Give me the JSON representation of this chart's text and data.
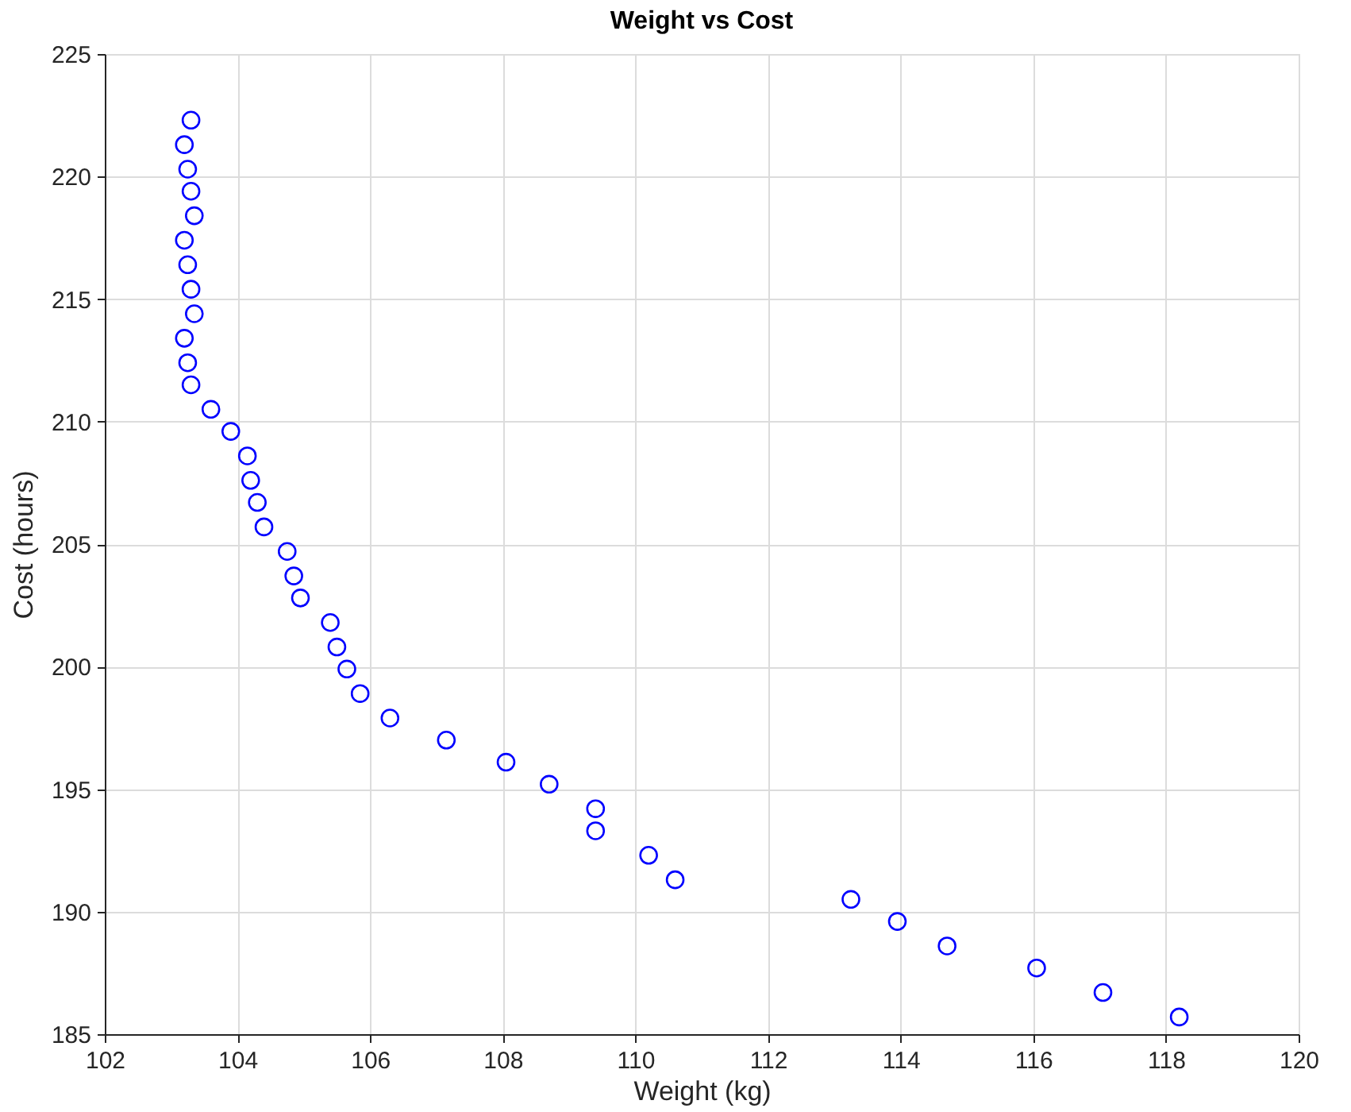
{
  "chart_data": {
    "type": "scatter",
    "title": "Weight vs Cost",
    "xlabel": "Weight (kg)",
    "ylabel": "Cost (hours)",
    "x": [
      103.3,
      103.2,
      103.25,
      103.3,
      103.35,
      103.2,
      103.25,
      103.3,
      103.35,
      103.2,
      103.25,
      103.3,
      103.6,
      103.9,
      104.15,
      104.2,
      104.3,
      104.4,
      104.75,
      104.85,
      104.95,
      105.4,
      105.5,
      105.65,
      105.85,
      106.3,
      107.15,
      108.05,
      108.7,
      109.4,
      109.4,
      110.2,
      110.6,
      113.25,
      113.95,
      114.7,
      116.05,
      117.05,
      118.2
    ],
    "series": [
      {
        "color": "#0000ff",
        "values": [
          222.3,
          221.3,
          220.3,
          219.4,
          218.4,
          217.4,
          216.4,
          215.4,
          214.4,
          213.4,
          212.4,
          211.5,
          210.5,
          209.6,
          208.6,
          207.6,
          206.7,
          205.7,
          204.7,
          203.7,
          202.8,
          201.8,
          200.8,
          199.9,
          198.9,
          197.9,
          197.0,
          196.1,
          195.2,
          194.2,
          193.3,
          192.3,
          191.3,
          190.5,
          189.6,
          188.6,
          187.7,
          186.7,
          185.7
        ]
      }
    ],
    "xlim": [
      102,
      120
    ],
    "xticks": [
      102,
      104,
      106,
      108,
      110,
      112,
      114,
      116,
      118,
      120
    ],
    "ylim": [
      185,
      225
    ],
    "yticks": [
      185,
      190,
      195,
      200,
      205,
      210,
      215,
      220,
      225
    ],
    "grid": true,
    "marker": "circle",
    "legend": false
  }
}
